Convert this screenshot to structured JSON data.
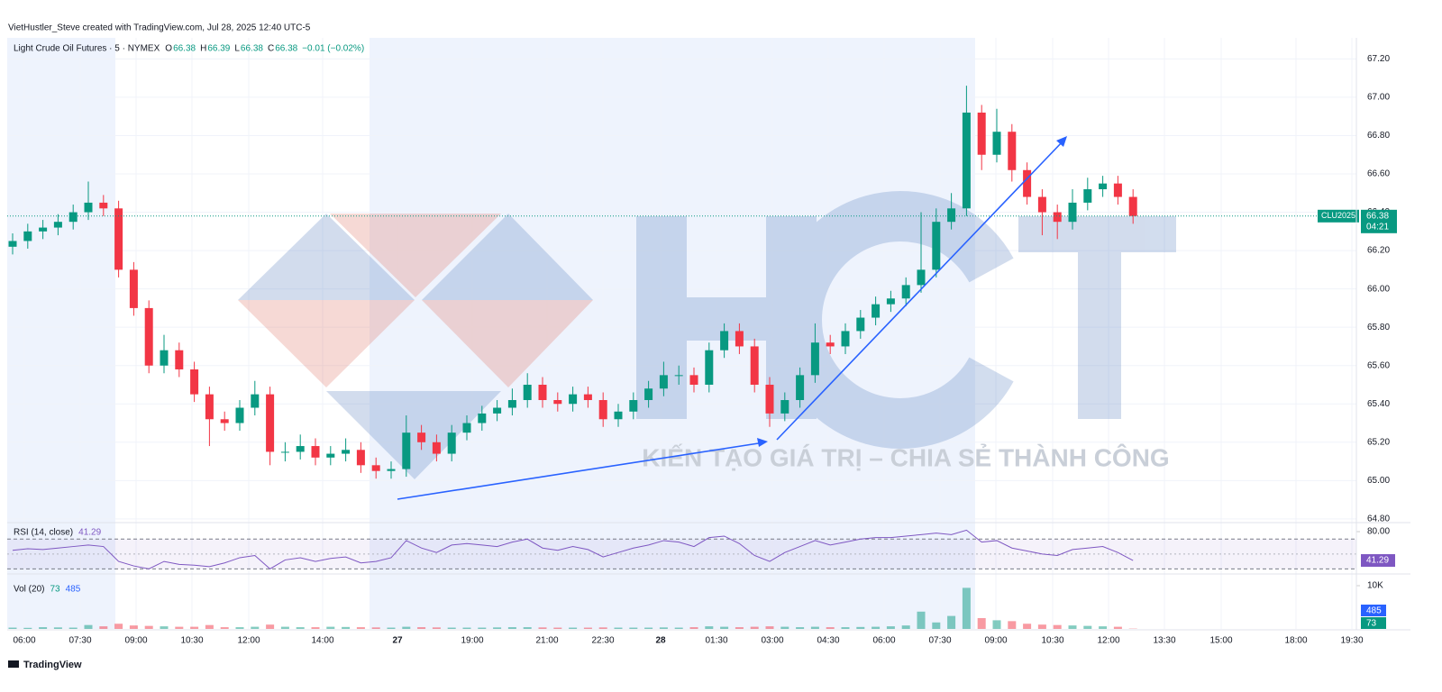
{
  "header": "VietHustler_Steve created with TradingView.com, Jul 28, 2025 12:40 UTC-5",
  "watermark": "KIẾN TẠO GIÁ TRỊ – CHIA SẺ THÀNH CÔNG",
  "footer": "TradingView",
  "chart_data": {
    "type": "candlestick",
    "legend": {
      "symbol": "Light Crude Oil Futures · 5 · NYMEX",
      "ohlc": [
        {
          "label": "O",
          "value": 66.38
        },
        {
          "label": "H",
          "value": 66.39
        },
        {
          "label": "L",
          "value": 66.38
        },
        {
          "label": "C",
          "value": 66.38
        }
      ],
      "change": "−0.01 (−0.02%)"
    },
    "colors": {
      "up": "#089981",
      "down": "#f23645"
    },
    "grid": true,
    "ylim": [
      64.79,
      67.31
    ],
    "yticks": [
      {
        "value": 64.8,
        "label": "64.80"
      },
      {
        "value": 65,
        "label": "65.00"
      },
      {
        "value": 65.2,
        "label": "65.20"
      },
      {
        "value": 65.4,
        "label": "65.40"
      },
      {
        "value": 65.6,
        "label": "65.60"
      },
      {
        "value": 65.8,
        "label": "65.80"
      },
      {
        "value": 66,
        "label": "66.00"
      },
      {
        "value": 66.2,
        "label": "66.20"
      },
      {
        "value": 66.4,
        "label": "66.40"
      },
      {
        "value": 66.6,
        "label": "66.60"
      },
      {
        "value": 66.8,
        "label": "66.80"
      },
      {
        "value": 67,
        "label": "67.00"
      },
      {
        "value": 67.2,
        "label": "67.20"
      }
    ],
    "last_price": {
      "symbol": "CLU2025",
      "value": 66.38,
      "countdown": "04:21"
    },
    "xticks": [
      "06:00",
      "07:30",
      "09:00",
      "10:30",
      "12:00",
      "14:00",
      "27",
      "19:00",
      "21:00",
      "22:30",
      "28",
      "01:30",
      "03:00",
      "04:30",
      "06:00",
      "07:30",
      "09:00",
      "10:30",
      "12:00",
      "13:30",
      "15:00",
      "18:00",
      "19:30"
    ],
    "candles": [
      [
        66.22,
        66.29,
        66.18,
        66.25
      ],
      [
        66.25,
        66.34,
        66.21,
        66.3
      ],
      [
        66.3,
        66.36,
        66.26,
        66.32
      ],
      [
        66.32,
        66.39,
        66.28,
        66.35
      ],
      [
        66.35,
        66.44,
        66.31,
        66.4
      ],
      [
        66.4,
        66.56,
        66.36,
        66.45
      ],
      [
        66.45,
        66.49,
        66.38,
        66.42
      ],
      [
        66.42,
        66.46,
        66.06,
        66.1
      ],
      [
        66.1,
        66.14,
        65.86,
        65.9
      ],
      [
        65.9,
        65.94,
        65.56,
        65.6
      ],
      [
        65.6,
        65.76,
        65.56,
        65.68
      ],
      [
        65.68,
        65.72,
        65.54,
        65.58
      ],
      [
        65.58,
        65.62,
        65.41,
        65.45
      ],
      [
        65.45,
        65.49,
        65.18,
        65.32
      ],
      [
        65.32,
        65.36,
        65.26,
        65.3
      ],
      [
        65.3,
        65.42,
        65.26,
        65.38
      ],
      [
        65.38,
        65.52,
        65.34,
        65.45
      ],
      [
        65.45,
        65.49,
        65.08,
        65.15
      ],
      [
        65.15,
        65.2,
        65.1,
        65.15
      ],
      [
        65.15,
        65.24,
        65.11,
        65.18
      ],
      [
        65.18,
        65.22,
        65.08,
        65.12
      ],
      [
        65.12,
        65.18,
        65.08,
        65.14
      ],
      [
        65.14,
        65.22,
        65.1,
        65.16
      ],
      [
        65.16,
        65.2,
        65.04,
        65.08
      ],
      [
        65.08,
        65.12,
        65.01,
        65.05
      ],
      [
        65.05,
        65.1,
        65.01,
        65.06
      ],
      [
        65.06,
        65.34,
        65.02,
        65.25
      ],
      [
        65.25,
        65.29,
        65.16,
        65.2
      ],
      [
        65.2,
        65.24,
        65.1,
        65.14
      ],
      [
        65.14,
        65.29,
        65.1,
        65.25
      ],
      [
        65.25,
        65.34,
        65.21,
        65.3
      ],
      [
        65.3,
        65.39,
        65.26,
        65.35
      ],
      [
        65.35,
        65.42,
        65.31,
        65.38
      ],
      [
        65.38,
        65.48,
        65.34,
        65.42
      ],
      [
        65.42,
        65.56,
        65.38,
        65.5
      ],
      [
        65.5,
        65.54,
        65.38,
        65.42
      ],
      [
        65.42,
        65.46,
        65.36,
        65.4
      ],
      [
        65.4,
        65.49,
        65.36,
        65.45
      ],
      [
        65.45,
        65.49,
        65.38,
        65.42
      ],
      [
        65.42,
        65.46,
        65.28,
        65.32
      ],
      [
        65.32,
        65.4,
        65.28,
        65.36
      ],
      [
        65.36,
        65.46,
        65.32,
        65.42
      ],
      [
        65.42,
        65.52,
        65.38,
        65.48
      ],
      [
        65.48,
        65.62,
        65.44,
        65.55
      ],
      [
        65.55,
        65.6,
        65.5,
        65.55
      ],
      [
        65.55,
        65.59,
        65.46,
        65.5
      ],
      [
        65.5,
        65.72,
        65.46,
        65.68
      ],
      [
        65.68,
        65.82,
        65.64,
        65.78
      ],
      [
        65.78,
        65.82,
        65.66,
        65.7
      ],
      [
        65.7,
        65.74,
        65.46,
        65.5
      ],
      [
        65.5,
        65.54,
        65.28,
        65.35
      ],
      [
        65.35,
        65.46,
        65.31,
        65.42
      ],
      [
        65.42,
        65.59,
        65.38,
        65.55
      ],
      [
        65.55,
        65.82,
        65.51,
        65.72
      ],
      [
        65.72,
        65.76,
        65.66,
        65.7
      ],
      [
        65.7,
        65.82,
        65.66,
        65.78
      ],
      [
        65.78,
        65.89,
        65.74,
        65.85
      ],
      [
        65.85,
        65.96,
        65.81,
        65.92
      ],
      [
        65.92,
        65.99,
        65.88,
        65.95
      ],
      [
        65.95,
        66.06,
        65.91,
        66.02
      ],
      [
        66.02,
        66.4,
        65.98,
        66.1
      ],
      [
        66.1,
        66.42,
        66.06,
        66.35
      ],
      [
        66.35,
        66.5,
        66.31,
        66.42
      ],
      [
        66.42,
        67.06,
        66.38,
        66.92
      ],
      [
        66.92,
        66.96,
        66.62,
        66.7
      ],
      [
        66.7,
        66.94,
        66.66,
        66.82
      ],
      [
        66.82,
        66.86,
        66.56,
        66.62
      ],
      [
        66.62,
        66.66,
        66.44,
        66.48
      ],
      [
        66.48,
        66.52,
        66.28,
        66.4
      ],
      [
        66.4,
        66.44,
        66.26,
        66.35
      ],
      [
        66.35,
        66.52,
        66.31,
        66.45
      ],
      [
        66.45,
        66.58,
        66.41,
        66.52
      ],
      [
        66.52,
        66.59,
        66.48,
        66.55
      ],
      [
        66.55,
        66.59,
        66.44,
        66.48
      ],
      [
        66.48,
        66.52,
        66.34,
        66.38
      ]
    ],
    "rsi": {
      "title": "RSI (14, close)",
      "last": 41.29,
      "color": "#7e57c2",
      "ylim": [
        25.6,
        88.5
      ],
      "yticks": [
        {
          "value": 80,
          "label": "80.00"
        }
      ],
      "bands": [
        70,
        30
      ],
      "mid": 50,
      "values": [
        55,
        57,
        56,
        58,
        60,
        62,
        60,
        40,
        34,
        30,
        40,
        36,
        35,
        33,
        38,
        45,
        48,
        30,
        42,
        45,
        40,
        44,
        46,
        38,
        40,
        45,
        68,
        58,
        52,
        62,
        64,
        62,
        60,
        66,
        70,
        58,
        55,
        60,
        56,
        46,
        52,
        58,
        62,
        68,
        66,
        60,
        72,
        74,
        64,
        48,
        40,
        52,
        60,
        68,
        62,
        66,
        70,
        72,
        72,
        74,
        76,
        78,
        76,
        82,
        66,
        68,
        58,
        54,
        50,
        48,
        56,
        58,
        60,
        52,
        41.29
      ]
    },
    "volume": {
      "title": "Vol (20)",
      "last": 73,
      "ma": 485,
      "ylim": [
        0,
        12083
      ],
      "yticks": [
        {
          "value": 10000,
          "label": "10K"
        }
      ],
      "values": [
        300,
        250,
        400,
        350,
        300,
        900,
        600,
        1200,
        800,
        700,
        600,
        500,
        500,
        900,
        400,
        400,
        500,
        1000,
        500,
        400,
        400,
        500,
        450,
        400,
        350,
        300,
        500,
        400,
        350,
        300,
        300,
        300,
        350,
        400,
        400,
        350,
        300,
        300,
        300,
        350,
        300,
        300,
        300,
        350,
        300,
        400,
        600,
        500,
        400,
        500,
        600,
        500,
        400,
        500,
        400,
        400,
        450,
        500,
        600,
        800,
        4000,
        1500,
        3000,
        9500,
        2500,
        2000,
        1800,
        1200,
        1000,
        900,
        800,
        700,
        600,
        500,
        73
      ]
    }
  }
}
